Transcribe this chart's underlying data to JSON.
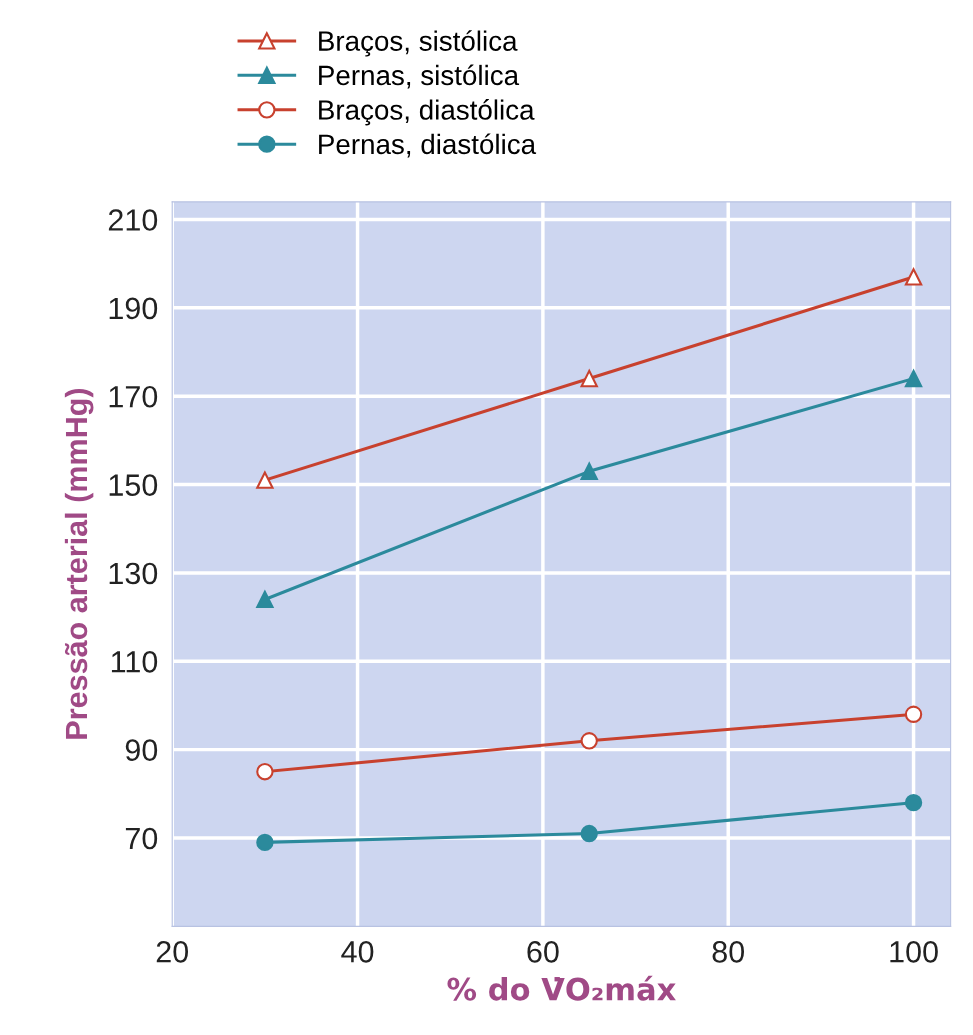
{
  "chart_data": {
    "type": "line",
    "xlabel": "% do V̇O₂máx",
    "ylabel": "Pressão arterial (mmHg)",
    "x": [
      30,
      65,
      100
    ],
    "series": [
      {
        "name": "Braços, sistólica",
        "color": "#c8412e",
        "values": [
          151,
          174,
          197
        ],
        "marker": "triangle"
      },
      {
        "name": "Pernas, sistólica",
        "color": "#2b8a9c",
        "values": [
          124,
          153,
          174
        ],
        "marker": "triangle"
      },
      {
        "name": "Braços, diastólica",
        "color": "#c8412e",
        "values": [
          85,
          92,
          98
        ],
        "marker": "circle"
      },
      {
        "name": "Pernas, diastólica",
        "color": "#2b8a9c",
        "values": [
          69,
          71,
          78
        ],
        "marker": "circle"
      }
    ],
    "xlim": [
      20,
      104
    ],
    "ylim": [
      50,
      214
    ],
    "xticks": [
      20,
      40,
      60,
      80,
      100
    ],
    "yticks": [
      70,
      90,
      110,
      130,
      150,
      170,
      190,
      210
    ],
    "grid": true,
    "legend": "top left",
    "line_style": "solid"
  }
}
